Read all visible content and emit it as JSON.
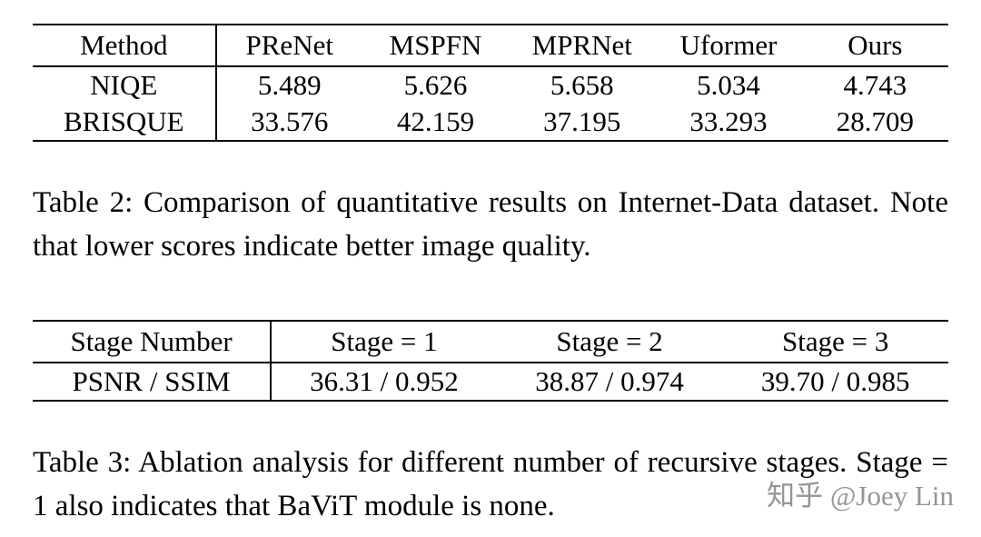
{
  "table2": {
    "headers": [
      "Method",
      "PReNet",
      "MSPFN",
      "MPRNet",
      "Uformer",
      "Ours"
    ],
    "rows": [
      {
        "label": "NIQE",
        "values": [
          "5.489",
          "5.626",
          "5.658",
          "5.034",
          "4.743"
        ]
      },
      {
        "label": "BRISQUE",
        "values": [
          "33.576",
          "42.159",
          "37.195",
          "33.293",
          "28.709"
        ]
      }
    ],
    "caption": "Table 2: Comparison of quantitative results on Internet-Data dataset. Note that lower scores indicate better image quality."
  },
  "table3": {
    "headers": [
      "Stage Number",
      "Stage = 1",
      "Stage = 2",
      "Stage = 3"
    ],
    "rows": [
      {
        "label": "PSNR / SSIM",
        "values": [
          "36.31 / 0.952",
          "38.87 / 0.974",
          "39.70 / 0.985"
        ]
      }
    ],
    "caption": "Table 3: Ablation analysis for different number of recursive stages. Stage = 1 also indicates that BaViT module is none."
  },
  "watermark": {
    "text": "知乎 @Joey Lin"
  }
}
